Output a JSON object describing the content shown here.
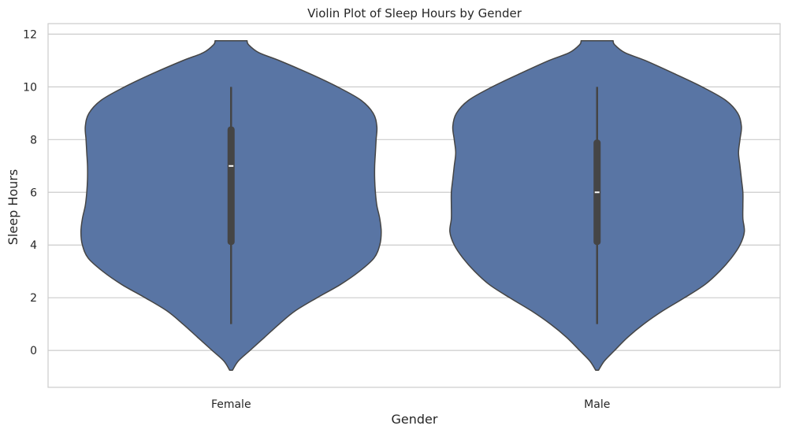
{
  "chart_data": {
    "type": "violin",
    "title": "Violin Plot of Sleep Hours by Gender",
    "xlabel": "Gender",
    "ylabel": "Sleep Hours",
    "ylim": [
      -1.4,
      12.4
    ],
    "yticks": [
      0,
      2,
      4,
      6,
      8,
      10,
      12
    ],
    "grid": true,
    "categories": [
      "Female",
      "Male"
    ],
    "fill_color": "#5975a4",
    "edge_color": "#454545",
    "box_color": "#454545",
    "median_color": "#ffffff",
    "violins": [
      {
        "category": "Female",
        "range": [
          -0.75,
          11.75
        ],
        "whiskers": [
          1,
          10
        ],
        "quartiles": [
          4,
          8.5
        ],
        "median": 7,
        "density": [
          [
            -0.75,
            0.01
          ],
          [
            -0.4,
            0.05
          ],
          [
            0.0,
            0.13
          ],
          [
            0.5,
            0.23
          ],
          [
            1.0,
            0.33
          ],
          [
            1.5,
            0.44
          ],
          [
            2.0,
            0.59
          ],
          [
            2.5,
            0.75
          ],
          [
            3.0,
            0.88
          ],
          [
            3.5,
            0.98
          ],
          [
            4.0,
            1.02
          ],
          [
            4.5,
            1.03
          ],
          [
            5.0,
            1.02
          ],
          [
            5.5,
            1.0
          ],
          [
            6.0,
            0.99
          ],
          [
            6.5,
            0.985
          ],
          [
            7.0,
            0.985
          ],
          [
            7.5,
            0.99
          ],
          [
            8.0,
            0.995
          ],
          [
            8.5,
            1.0
          ],
          [
            9.0,
            0.975
          ],
          [
            9.5,
            0.89
          ],
          [
            10.0,
            0.73
          ],
          [
            10.5,
            0.54
          ],
          [
            11.0,
            0.33
          ],
          [
            11.3,
            0.19
          ],
          [
            11.6,
            0.12
          ],
          [
            11.75,
            0.11
          ]
        ]
      },
      {
        "category": "Male",
        "range": [
          -0.75,
          11.75
        ],
        "whiskers": [
          1,
          10
        ],
        "quartiles": [
          4,
          8
        ],
        "median": 6,
        "density": [
          [
            -0.75,
            0.01
          ],
          [
            -0.4,
            0.05
          ],
          [
            0.0,
            0.12
          ],
          [
            0.5,
            0.21
          ],
          [
            1.0,
            0.32
          ],
          [
            1.5,
            0.45
          ],
          [
            2.0,
            0.6
          ],
          [
            2.5,
            0.74
          ],
          [
            3.0,
            0.84
          ],
          [
            3.5,
            0.92
          ],
          [
            4.0,
            0.98
          ],
          [
            4.5,
            1.01
          ],
          [
            5.0,
            1.0
          ],
          [
            5.5,
            1.0
          ],
          [
            6.0,
            1.0
          ],
          [
            6.5,
            0.99
          ],
          [
            7.0,
            0.98
          ],
          [
            7.5,
            0.97
          ],
          [
            8.0,
            0.98
          ],
          [
            8.5,
            0.99
          ],
          [
            9.0,
            0.965
          ],
          [
            9.5,
            0.88
          ],
          [
            10.0,
            0.72
          ],
          [
            10.5,
            0.53
          ],
          [
            11.0,
            0.33
          ],
          [
            11.3,
            0.19
          ],
          [
            11.6,
            0.12
          ],
          [
            11.75,
            0.11
          ]
        ]
      }
    ]
  }
}
